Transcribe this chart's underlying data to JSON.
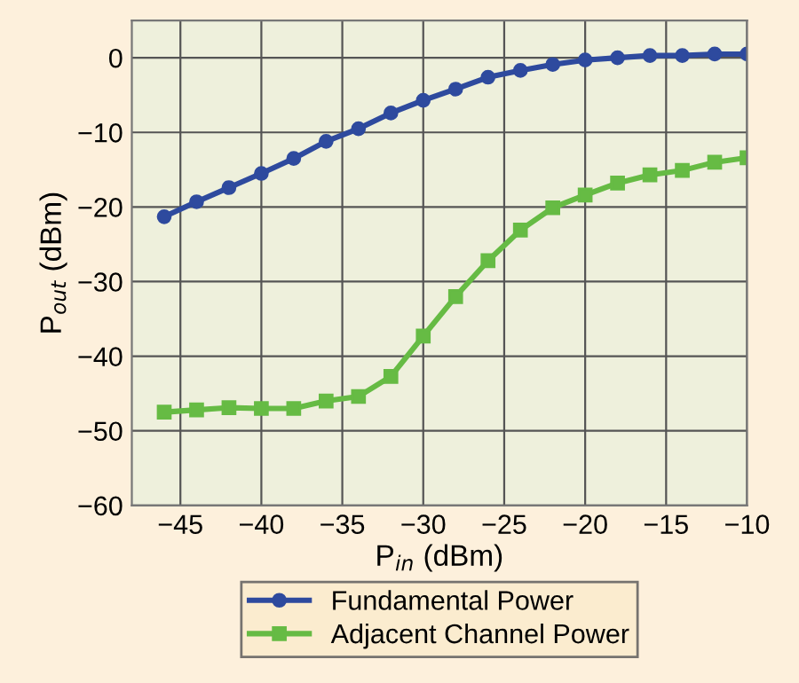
{
  "chart_data": {
    "type": "line",
    "xlabel": "P$_{in}$ (dBm)",
    "ylabel": "P$_{out}$ (dBm)",
    "x": [
      -46,
      -44,
      -42,
      -40,
      -38,
      -36,
      -34,
      -32,
      -30,
      -28,
      -26,
      -24,
      -22,
      -20,
      -18,
      -16,
      -14,
      -12,
      -10
    ],
    "series": [
      {
        "name": "Fundamental Power",
        "color": "#2e4a9e",
        "marker": "circle",
        "values": [
          -21.3,
          -19.3,
          -17.4,
          -15.5,
          -13.5,
          -11.2,
          -9.5,
          -7.4,
          -5.7,
          -4.2,
          -2.6,
          -1.7,
          -0.9,
          -0.3,
          0,
          0.3,
          0.3,
          0.5,
          0.5
        ]
      },
      {
        "name": "Adjacent Channel Power",
        "color": "#66bb44",
        "marker": "square",
        "values": [
          -47.5,
          -47.2,
          -46.9,
          -47.0,
          -47.0,
          -46.0,
          -45.4,
          -42.7,
          -37.3,
          -32,
          -27.2,
          -23.1,
          -20.1,
          -18.4,
          -16.8,
          -15.7,
          -15.1,
          -14.0,
          -13.4
        ]
      }
    ],
    "xlim": [
      -48,
      -10
    ],
    "xticks": [
      -45,
      -40,
      -35,
      -30,
      -25,
      -20,
      -15,
      -10
    ],
    "ylim": [
      -60,
      5
    ],
    "yticks": [
      -60,
      -50,
      -40,
      -30,
      -20,
      -10,
      0
    ],
    "grid": true,
    "legend": "bottom",
    "line_style": "solid"
  }
}
